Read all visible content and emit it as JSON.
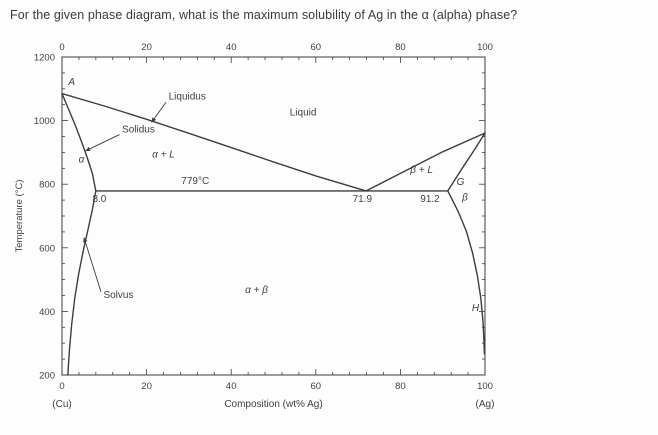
{
  "question": "For the given phase diagram, what is the maximum solubility of Ag  in the α (alpha) phase?",
  "chart_data": {
    "type": "line",
    "xlabel": "Composition (wt% Ag)",
    "ylabel": "Temperature (°C)",
    "x_left_label": "(Cu)",
    "x_right_label": "(Ag)",
    "xlim": [
      0,
      100
    ],
    "ylim": [
      200,
      1200
    ],
    "x_ticks": [
      0,
      20,
      40,
      60,
      80,
      100
    ],
    "y_ticks": [
      200,
      400,
      600,
      800,
      1000,
      1200
    ],
    "x_minor_step": 4,
    "y_minor_step": 50,
    "line_color": "#3d3d3d",
    "text_color": "#3f3f3f",
    "series": [
      {
        "name": "liquidus-left",
        "points": [
          [
            0,
            1085
          ],
          [
            10,
            1046
          ],
          [
            20,
            1004
          ],
          [
            30,
            960
          ],
          [
            40,
            915
          ],
          [
            50,
            870
          ],
          [
            60,
            826
          ],
          [
            71.9,
            779
          ]
        ]
      },
      {
        "name": "liquidus-right",
        "points": [
          [
            71.9,
            779
          ],
          [
            80,
            834
          ],
          [
            90,
            902
          ],
          [
            100,
            961
          ]
        ]
      },
      {
        "name": "solidus-left",
        "points": [
          [
            0,
            1085
          ],
          [
            1.5,
            1038
          ],
          [
            3,
            990
          ],
          [
            4.5,
            938
          ],
          [
            6,
            882
          ],
          [
            7.2,
            832
          ],
          [
            8,
            779
          ]
        ]
      },
      {
        "name": "solidus-right",
        "points": [
          [
            100,
            961
          ],
          [
            97.5,
            908
          ],
          [
            95,
            858
          ],
          [
            92.8,
            812
          ],
          [
            91.2,
            779
          ]
        ]
      },
      {
        "name": "solvus-left",
        "points": [
          [
            8,
            779
          ],
          [
            7.2,
            722
          ],
          [
            6.2,
            660
          ],
          [
            5,
            590
          ],
          [
            3.9,
            515
          ],
          [
            3,
            440
          ],
          [
            2.3,
            360
          ],
          [
            1.8,
            285
          ],
          [
            1.5,
            225
          ],
          [
            1.4,
            200
          ]
        ]
      },
      {
        "name": "solvus-right",
        "points": [
          [
            91.2,
            779
          ],
          [
            93.6,
            716
          ],
          [
            95.6,
            652
          ],
          [
            97.1,
            582
          ],
          [
            98.2,
            512
          ],
          [
            99,
            442
          ],
          [
            99.5,
            372
          ],
          [
            99.75,
            312
          ],
          [
            99.85,
            266
          ]
        ]
      },
      {
        "name": "eutectic-isotherm",
        "points": [
          [
            8,
            779
          ],
          [
            91.2,
            779
          ]
        ]
      }
    ],
    "annotations": [
      {
        "text": "A",
        "x": 2.3,
        "y": 1112,
        "italic": true,
        "anchor": "middle"
      },
      {
        "text": "Liquidus",
        "x": 25.2,
        "y": 1066,
        "anchor": "start",
        "leader": [
          [
            24.6,
            1058
          ],
          [
            21.2,
            995
          ]
        ],
        "arrow": true
      },
      {
        "text": "Liquid",
        "x": 57,
        "y": 1016,
        "anchor": "middle"
      },
      {
        "text": "Solidus",
        "x": 14.2,
        "y": 962,
        "anchor": "start",
        "leader": [
          [
            13.6,
            956
          ],
          [
            5.6,
            905
          ]
        ],
        "arrow": true
      },
      {
        "text": "α + L",
        "x": 24,
        "y": 884,
        "anchor": "middle",
        "italic": true
      },
      {
        "text": "779°C",
        "x": 31.5,
        "y": 800,
        "anchor": "middle"
      },
      {
        "text": "α",
        "x": 4.6,
        "y": 868,
        "anchor": "middle",
        "italic": true
      },
      {
        "text": "8.0",
        "x": 7.2,
        "y": 744,
        "anchor": "start"
      },
      {
        "text": "71.9",
        "x": 71,
        "y": 744,
        "anchor": "middle"
      },
      {
        "text": "91.2",
        "x": 87,
        "y": 744,
        "anchor": "middle"
      },
      {
        "text": "β + L",
        "x": 85,
        "y": 836,
        "anchor": "middle",
        "italic": true
      },
      {
        "text": "G",
        "x": 93.3,
        "y": 798,
        "anchor": "start",
        "italic": true
      },
      {
        "text": "β",
        "x": 94.6,
        "y": 748,
        "anchor": "start",
        "italic": true
      },
      {
        "text": "Solvus",
        "x": 9.8,
        "y": 442,
        "anchor": "start",
        "leader": [
          [
            9.2,
            462
          ],
          [
            5.2,
            632
          ]
        ],
        "arrow": true
      },
      {
        "text": "α + β",
        "x": 46,
        "y": 458,
        "anchor": "middle",
        "italic": true
      },
      {
        "text": "H",
        "x": 98.6,
        "y": 402,
        "anchor": "end",
        "italic": true
      }
    ]
  }
}
